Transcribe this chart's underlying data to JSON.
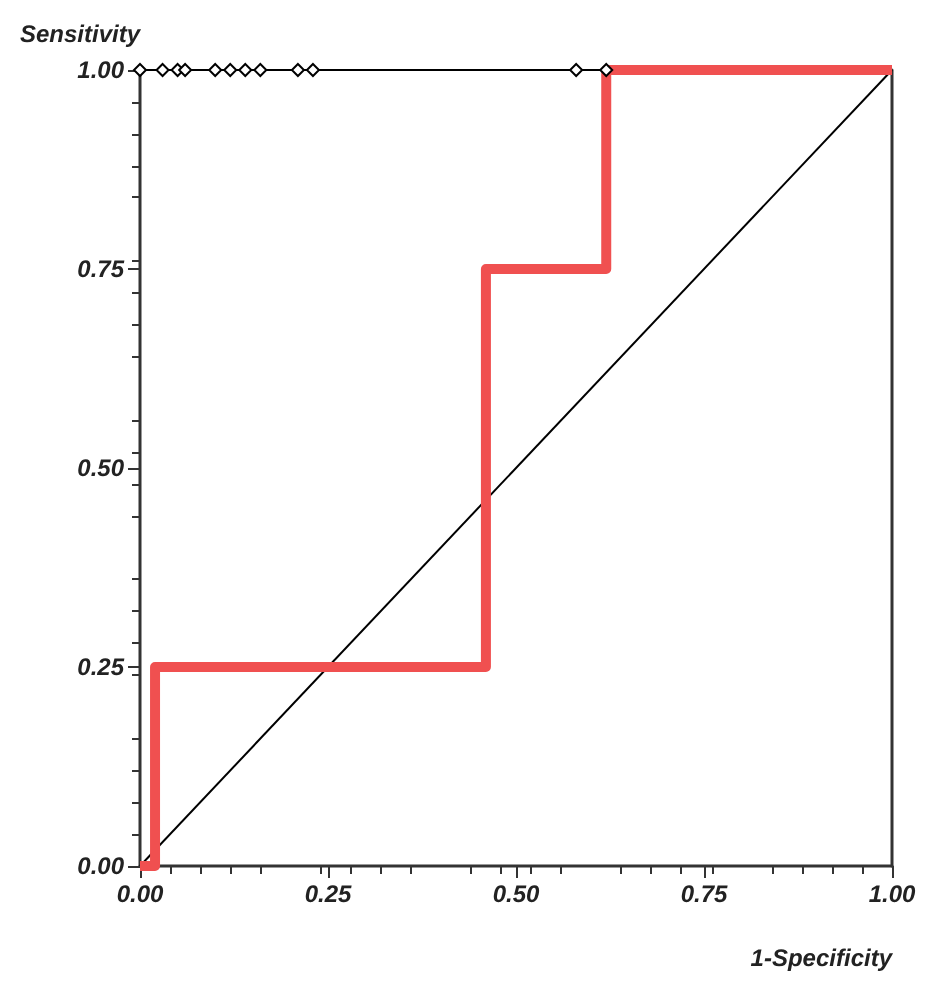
{
  "chart_data": {
    "type": "line",
    "xlabel": "1-Specificity",
    "ylabel": "Sensitivity",
    "xlim": [
      0,
      1
    ],
    "ylim": [
      0,
      1
    ],
    "xticks": [
      {
        "value": 0,
        "label": "0.00"
      },
      {
        "value": 0.25,
        "label": "0.25"
      },
      {
        "value": 0.5,
        "label": "0.50"
      },
      {
        "value": 0.75,
        "label": "0.75"
      },
      {
        "value": 1,
        "label": "1.00"
      }
    ],
    "yticks": [
      {
        "value": 0,
        "label": "0.00"
      },
      {
        "value": 0.25,
        "label": "0.25"
      },
      {
        "value": 0.5,
        "label": "0.50"
      },
      {
        "value": 0.75,
        "label": "0.75"
      },
      {
        "value": 1,
        "label": "1.00"
      }
    ],
    "grid": false,
    "series": [
      {
        "color": "#000000",
        "x": [
          0,
          1
        ],
        "values": [
          0,
          1
        ],
        "marker": "none"
      },
      {
        "color": "#000000",
        "x": [
          0,
          0.03,
          0.05,
          0.06,
          0.1,
          0.12,
          0.14,
          0.16,
          0.21,
          0.23,
          0.58,
          0.62
        ],
        "values": [
          1,
          1,
          1,
          1,
          1,
          1,
          1,
          1,
          1,
          1,
          1,
          1
        ],
        "marker": "diamond"
      },
      {
        "color": "#f05050",
        "x": [
          0,
          0.02,
          0.02,
          0.46,
          0.46,
          0.62,
          0.62,
          1
        ],
        "values": [
          0,
          0,
          0.25,
          0.25,
          0.75,
          0.75,
          1,
          1
        ],
        "marker": "none"
      }
    ]
  }
}
